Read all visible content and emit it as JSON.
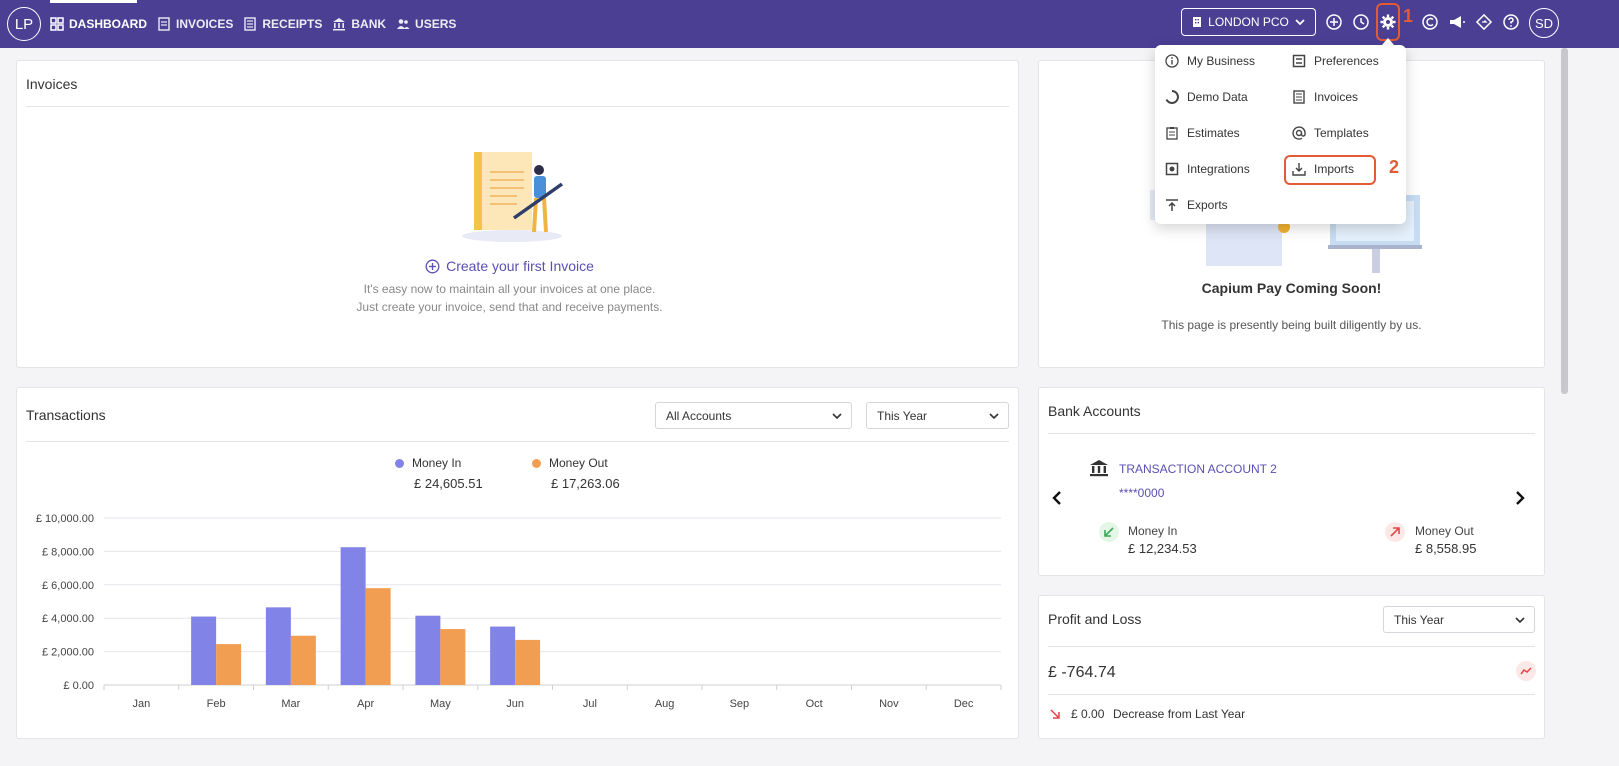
{
  "logo": {
    "initials": "LP"
  },
  "nav": {
    "dashboard": "DASHBOARD",
    "invoices": "INVOICES",
    "receipts": "RECEIPTS",
    "bank": "BANK",
    "users": "USERS"
  },
  "company_selector": {
    "value": "LONDON PCO"
  },
  "annotations": {
    "gear": "1",
    "imports": "2"
  },
  "user_avatar": {
    "initials": "SD"
  },
  "settings_menu": {
    "left": [
      {
        "label": "My Business",
        "icon": "info-icon"
      },
      {
        "label": "Demo Data",
        "icon": "circle-icon"
      },
      {
        "label": "Estimates",
        "icon": "clipboard-icon"
      },
      {
        "label": "Integrations",
        "icon": "integration-icon"
      },
      {
        "label": "Exports",
        "icon": "upload-icon"
      }
    ],
    "right": [
      {
        "label": "Preferences",
        "icon": "preferences-icon"
      },
      {
        "label": "Invoices",
        "icon": "document-icon"
      },
      {
        "label": "Templates",
        "icon": "at-icon"
      },
      {
        "label": "Imports",
        "icon": "download-icon"
      }
    ]
  },
  "invoices_card": {
    "title": "Invoices",
    "create_link": "Create your first Invoice",
    "desc1": "It's easy now to maintain all your invoices at one place.",
    "desc2": "Just create your invoice, send that and receive payments."
  },
  "capium_pay": {
    "title": "Capium Pay Coming Soon!",
    "subtitle": "This page is presently being built diligently by us."
  },
  "transactions": {
    "title": "Transactions",
    "account_filter": "All Accounts",
    "period_filter": "This Year",
    "money_in_label": "Money In",
    "money_in_value": "£ 24,605.51",
    "money_out_label": "Money Out",
    "money_out_value": "£ 17,263.06"
  },
  "bank_accounts": {
    "title": "Bank Accounts",
    "account_name": "TRANSACTION ACCOUNT 2",
    "account_number": "****0000",
    "money_in_label": "Money In",
    "money_in_value": "£ 12,234.53",
    "money_out_label": "Money Out",
    "money_out_value": "£ 8,558.95"
  },
  "profit_loss": {
    "title": "Profit and Loss",
    "period_filter": "This Year",
    "value": "£ -764.74",
    "change_value": "£ 0.00",
    "change_text": "Decrease from Last Year"
  },
  "colors": {
    "primary": "#4b3f94",
    "money_in": "#8283e6",
    "money_out": "#f29e52",
    "annotation": "#e25b36"
  },
  "chart_data": {
    "type": "bar",
    "categories": [
      "Jan",
      "Feb",
      "Mar",
      "Apr",
      "May",
      "Jun",
      "Jul",
      "Aug",
      "Sep",
      "Oct",
      "Nov",
      "Dec"
    ],
    "series": [
      {
        "name": "Money In",
        "values": [
          0,
          4100,
          4650,
          8250,
          4150,
          3500,
          0,
          0,
          0,
          0,
          0,
          0
        ]
      },
      {
        "name": "Money Out",
        "values": [
          0,
          2450,
          2950,
          5800,
          3350,
          2700,
          0,
          0,
          0,
          0,
          0,
          0
        ]
      }
    ],
    "yticks": [
      "£ 0.00",
      "£ 2,000.00",
      "£ 4,000.00",
      "£ 6,000.00",
      "£ 8,000.00",
      "£ 10,000.00"
    ],
    "ylim": [
      0,
      10000
    ],
    "grid": true
  }
}
